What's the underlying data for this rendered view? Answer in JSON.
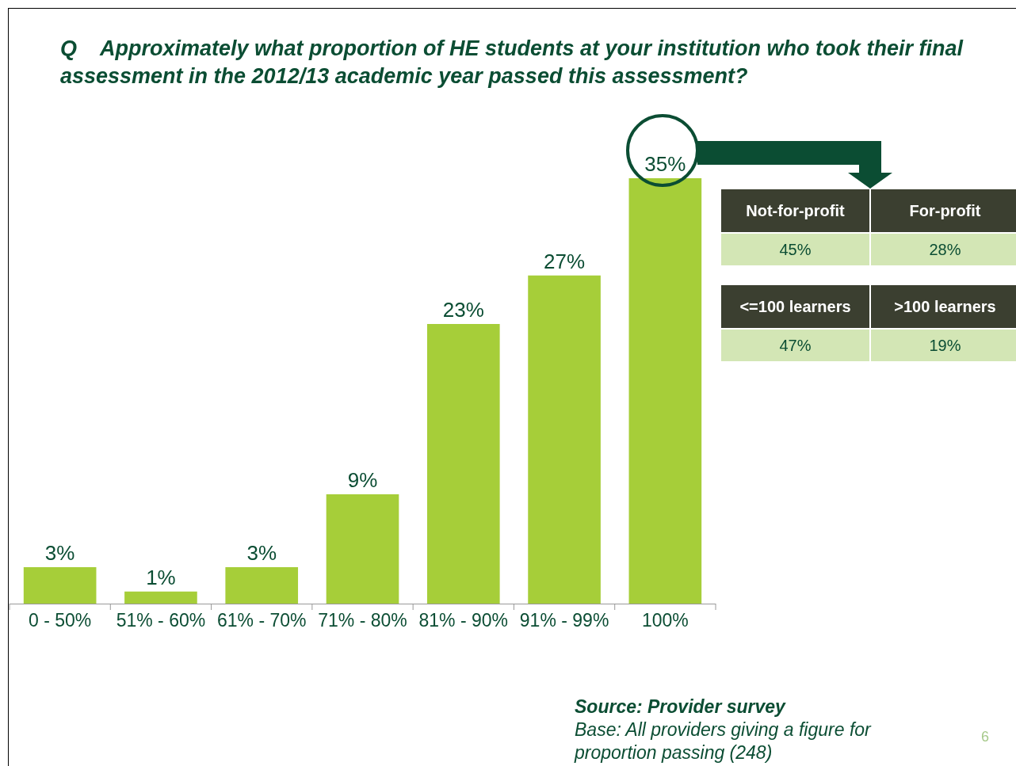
{
  "chart_data": [
    {
      "type": "bar",
      "title": "Q    Approximately what proportion of HE students at your institution who took their final assessment in the 2012/13 academic year passed this assessment?",
      "categories": [
        "0 - 50%",
        "51% - 60%",
        "61% - 70%",
        "71% - 80%",
        "81% - 90%",
        "91% - 99%",
        "100%"
      ],
      "values": [
        3,
        1,
        3,
        9,
        23,
        27,
        35
      ],
      "value_labels": [
        "3%",
        "1%",
        "3%",
        "9%",
        "23%",
        "27%",
        "35%"
      ],
      "color": "#a6ce39",
      "tick_labels": "x",
      "grid": false,
      "legend": false,
      "annotations": [
        "Source: Provider survey",
        "Base: All providers giving a figure for proportion passing (248)",
        "6"
      ]
    },
    {
      "type": "other",
      "annotations": [
        "Not-for-profit",
        "For-profit",
        "45%",
        "28%",
        "<=100 learners",
        ">100 learners",
        "47%",
        "19%"
      ]
    }
  ]
}
